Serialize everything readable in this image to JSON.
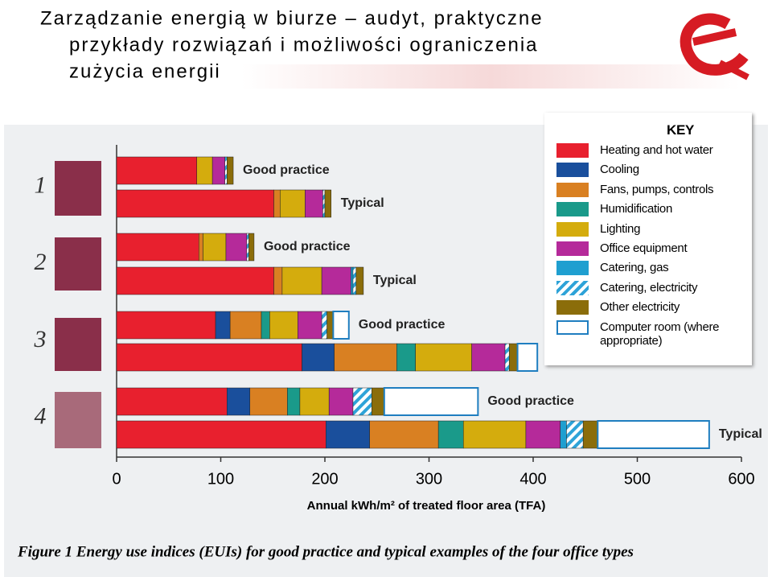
{
  "slide": {
    "title_lines": [
      "Zarządzanie energią w biurze – audyt, praktyczne",
      "przykłady rozwiązań i możliwości ograniczenia",
      "zużycia energii"
    ]
  },
  "chart_data": {
    "type": "stacked-bar-horizontal",
    "caption": "Figure 1 Energy use indices (EUIs) for good practice and typical examples of the four office types",
    "x_label": "Annual kWh/m² of treated floor area (TFA)",
    "legend_title": "KEY",
    "groups": [
      "1",
      "2",
      "3",
      "4"
    ],
    "categories": [
      "Good practice",
      "Typical",
      "Good practice",
      "Typical",
      "Good practice",
      null,
      "Good practice",
      "Typical"
    ],
    "xlim": [
      0,
      600
    ],
    "xticks": [
      0,
      100,
      200,
      300,
      400,
      500,
      600
    ],
    "series": [
      {
        "name": "Heating and hot water",
        "color": "#e8202e",
        "values": [
          77,
          151,
          79,
          151,
          95,
          178,
          106,
          201
        ]
      },
      {
        "name": "Cooling",
        "color": "#1a4f9c",
        "values": [
          0,
          0,
          0,
          0,
          14,
          31,
          22,
          42
        ]
      },
      {
        "name": "Fans, pumps, controls",
        "color": "#d98022",
        "values": [
          0,
          6,
          4,
          8,
          30,
          60,
          36,
          66
        ]
      },
      {
        "name": "Humidification",
        "color": "#1a9a8a",
        "values": [
          0,
          0,
          0,
          0,
          8,
          18,
          12,
          24
        ]
      },
      {
        "name": "Lighting",
        "color": "#d4ac0d",
        "values": [
          15,
          24,
          22,
          38,
          27,
          54,
          28,
          60
        ]
      },
      {
        "name": "Office equipment",
        "color": "#b52a9a",
        "values": [
          12,
          17,
          20,
          28,
          23,
          32,
          23,
          33
        ]
      },
      {
        "name": "Catering, gas",
        "color": "#1f9fd0",
        "values": [
          0,
          0,
          0,
          2,
          0,
          0,
          0,
          6
        ]
      },
      {
        "name": "Catering, electricity",
        "color": "#2ea3d8",
        "hatched": true,
        "values": [
          2,
          2,
          2,
          3,
          5,
          4,
          18,
          16
        ]
      },
      {
        "name": "Other electricity",
        "color": "#8b6d0a",
        "values": [
          6,
          6,
          5,
          7,
          6,
          8,
          12,
          14
        ]
      },
      {
        "name": "Computer room (where appropriate)",
        "color": "#ffffff",
        "outline": "#1f7ec0",
        "values": [
          0,
          0,
          0,
          0,
          15,
          19,
          90,
          107
        ]
      }
    ]
  }
}
